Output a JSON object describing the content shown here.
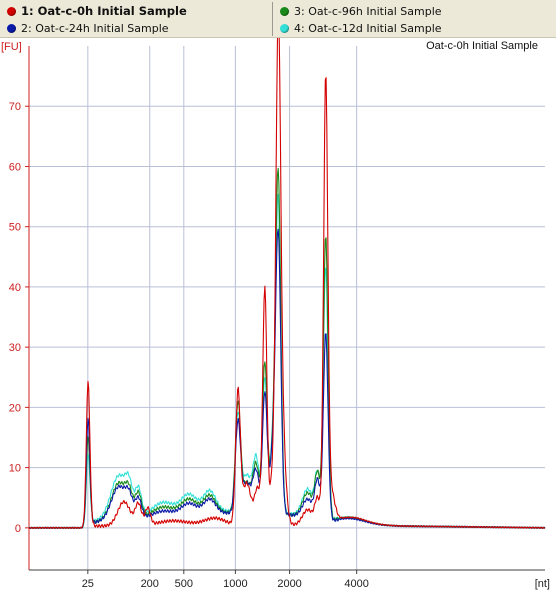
{
  "legend": [
    {
      "label": "1: Oat-c-0h Initial Sample",
      "color": "#d40000",
      "active": true
    },
    {
      "label": "2: Oat-c-24h Initial Sample",
      "color": "#0a1aa8",
      "active": false
    },
    {
      "label": "3: Oat-c-96h Initial Sample",
      "color": "#1a8a1a",
      "active": false
    },
    {
      "label": "4: Oat-c-12d Initial Sample",
      "color": "#33e0d8",
      "active": false
    }
  ],
  "chart_data": {
    "type": "line",
    "title": "Oat-c-0h Initial Sample",
    "ylabel": "[FU]",
    "xlabel": "[nt]",
    "ylim": [
      -7,
      80
    ],
    "xlim": [
      0,
      100
    ],
    "yticks": [
      0,
      10,
      20,
      30,
      40,
      50,
      60,
      70
    ],
    "xticks": [
      {
        "pos": 11.4,
        "label": "25"
      },
      {
        "pos": 23.4,
        "label": "200"
      },
      {
        "pos": 30.0,
        "label": "500"
      },
      {
        "pos": 40.0,
        "label": "1000"
      },
      {
        "pos": 50.5,
        "label": "2000"
      },
      {
        "pos": 63.5,
        "label": "4000"
      }
    ],
    "grid": true,
    "series": [
      {
        "name": "1: Oat-c-0h Initial Sample",
        "color": "#d40000",
        "peaks": [
          [
            11.45,
            24,
            0.35
          ],
          [
            18.4,
            4,
            1.2
          ],
          [
            21.2,
            3.5,
            0.6
          ],
          [
            23.0,
            2.8,
            0.5
          ],
          [
            28.0,
            0.8,
            3
          ],
          [
            36.0,
            1.2,
            2
          ],
          [
            40.5,
            22,
            0.45
          ],
          [
            42.2,
            7,
            0.8
          ],
          [
            44.3,
            6,
            0.6
          ],
          [
            45.7,
            39,
            0.4
          ],
          [
            47.3,
            8,
            0.6
          ],
          [
            48.3,
            71.5,
            0.45
          ],
          [
            48.9,
            18,
            0.7
          ],
          [
            54.0,
            2.5,
            1
          ],
          [
            55.9,
            4,
            0.5
          ],
          [
            57.5,
            71,
            0.4
          ],
          [
            58.3,
            6,
            0.8
          ],
          [
            62.0,
            1.2,
            3
          ]
        ],
        "baseline": [
          [
            0,
            0
          ],
          [
            11.2,
            0
          ],
          [
            11.6,
            0.5
          ],
          [
            13,
            0.3
          ],
          [
            60,
            0.5
          ],
          [
            64,
            0.6
          ],
          [
            72,
            0.3
          ],
          [
            100,
            0
          ]
        ]
      },
      {
        "name": "2: Oat-c-24h Initial Sample",
        "color": "#0a1aa8",
        "peaks": [
          [
            11.45,
            18,
            0.35
          ],
          [
            17.4,
            5.5,
            1.4
          ],
          [
            19.4,
            3,
            0.7
          ],
          [
            21.2,
            3.3,
            0.6
          ],
          [
            26,
            1,
            2
          ],
          [
            31,
            2,
            1.5
          ],
          [
            35,
            2.5,
            1.2
          ],
          [
            40.5,
            15,
            0.5
          ],
          [
            42.2,
            5,
            0.8
          ],
          [
            44.0,
            7,
            0.6
          ],
          [
            45.7,
            20,
            0.45
          ],
          [
            47.3,
            10,
            0.6
          ],
          [
            48.3,
            45,
            0.5
          ],
          [
            54.0,
            3,
            1
          ],
          [
            55.9,
            6,
            0.5
          ],
          [
            57.5,
            31,
            0.45
          ],
          [
            62.0,
            1.0,
            3
          ]
        ],
        "baseline": [
          [
            0,
            0
          ],
          [
            11.2,
            0
          ],
          [
            12,
            0.8
          ],
          [
            15,
            1.2
          ],
          [
            30,
            2
          ],
          [
            40,
            2.5
          ],
          [
            50,
            2.2
          ],
          [
            56,
            1.5
          ],
          [
            59,
            0.6
          ],
          [
            64,
            0.5
          ],
          [
            72,
            0.3
          ],
          [
            100,
            0
          ]
        ]
      },
      {
        "name": "3: Oat-c-96h Initial Sample",
        "color": "#1a8a1a",
        "peaks": [
          [
            11.45,
            15,
            0.35
          ],
          [
            17.4,
            6,
            1.4
          ],
          [
            19.4,
            3.5,
            0.7
          ],
          [
            21.2,
            4,
            0.6
          ],
          [
            26,
            1.5,
            2
          ],
          [
            31,
            2.5,
            1.5
          ],
          [
            35,
            3,
            1.2
          ],
          [
            40.5,
            18,
            0.5
          ],
          [
            42.2,
            5,
            0.8
          ],
          [
            44.0,
            8,
            0.6
          ],
          [
            45.7,
            25,
            0.45
          ],
          [
            47.3,
            10,
            0.6
          ],
          [
            48.3,
            55,
            0.5
          ],
          [
            54.0,
            4,
            1
          ],
          [
            55.9,
            7,
            0.5
          ],
          [
            57.5,
            47,
            0.45
          ],
          [
            62.0,
            1.2,
            3
          ]
        ],
        "baseline": [
          [
            0,
            0
          ],
          [
            11.2,
            0
          ],
          [
            12,
            0.8
          ],
          [
            15,
            1.3
          ],
          [
            30,
            2.2
          ],
          [
            40,
            2.6
          ],
          [
            50,
            2.2
          ],
          [
            56,
            1.6
          ],
          [
            59,
            0.6
          ],
          [
            64,
            0.5
          ],
          [
            72,
            0.3
          ],
          [
            100,
            0
          ]
        ]
      },
      {
        "name": "4: Oat-c-12d Initial Sample",
        "color": "#33e0d8",
        "peaks": [
          [
            11.45,
            12,
            0.35
          ],
          [
            17.4,
            7,
            1.5
          ],
          [
            19.4,
            4,
            0.7
          ],
          [
            21.2,
            4.5,
            0.6
          ],
          [
            26,
            2,
            2
          ],
          [
            31,
            3,
            1.5
          ],
          [
            35,
            3.5,
            1.2
          ],
          [
            40.5,
            16,
            0.5
          ],
          [
            42.2,
            6,
            0.8
          ],
          [
            44.0,
            9,
            0.6
          ],
          [
            45.7,
            22,
            0.45
          ],
          [
            47.3,
            11,
            0.6
          ],
          [
            48.3,
            50,
            0.5
          ],
          [
            54.0,
            4.5,
            1
          ],
          [
            55.9,
            7,
            0.5
          ],
          [
            57.5,
            42,
            0.45
          ],
          [
            62.0,
            1.2,
            3
          ]
        ],
        "baseline": [
          [
            0,
            0
          ],
          [
            11.2,
            0
          ],
          [
            12,
            1
          ],
          [
            15,
            1.5
          ],
          [
            30,
            2.5
          ],
          [
            40,
            2.8
          ],
          [
            50,
            2.4
          ],
          [
            56,
            1.7
          ],
          [
            59,
            0.7
          ],
          [
            64,
            0.5
          ],
          [
            72,
            0.3
          ],
          [
            100,
            0
          ]
        ]
      }
    ]
  }
}
